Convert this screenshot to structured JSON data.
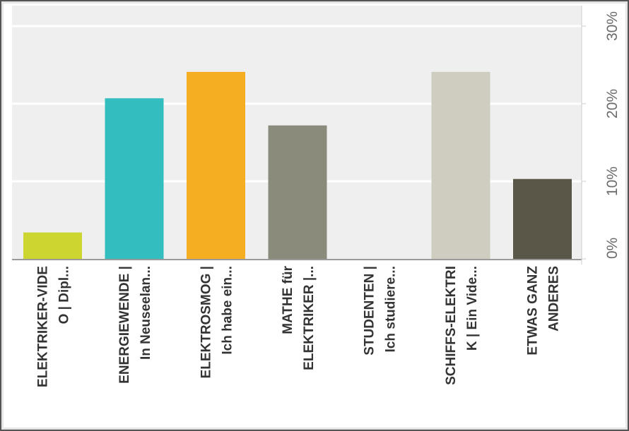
{
  "chart_data": {
    "type": "bar",
    "categories": [
      [
        "ELEKTRIKER-VIDE",
        "O | Dipl..."
      ],
      [
        "ENERGIEWENDE |",
        "In Neuseelan..."
      ],
      [
        "ELEKTROSMOG |",
        "Ich habe ein..."
      ],
      [
        "MATHE für",
        "ELEKTRIKER |..."
      ],
      [
        "STUDENTEN |",
        "Ich studiere..."
      ],
      [
        "SCHIFFS-ELEKTRI",
        "K | Ein Vide..."
      ],
      [
        "ETWAS GANZ",
        "ANDERES"
      ]
    ],
    "values": [
      3.4,
      20.7,
      24.1,
      17.2,
      0,
      24.1,
      10.3
    ],
    "colors": [
      "#cdd630",
      "#33bdbf",
      "#f5ad21",
      "#8a8b7a",
      "#b5b5a5",
      "#cfcdc0",
      "#5a5748"
    ],
    "ylim": [
      0,
      30
    ],
    "yticks": [
      0,
      10,
      20,
      30
    ],
    "ytick_labels": [
      "0%",
      "10%",
      "20%",
      "30%"
    ],
    "grid": true,
    "title": "",
    "xlabel": "",
    "ylabel": ""
  }
}
